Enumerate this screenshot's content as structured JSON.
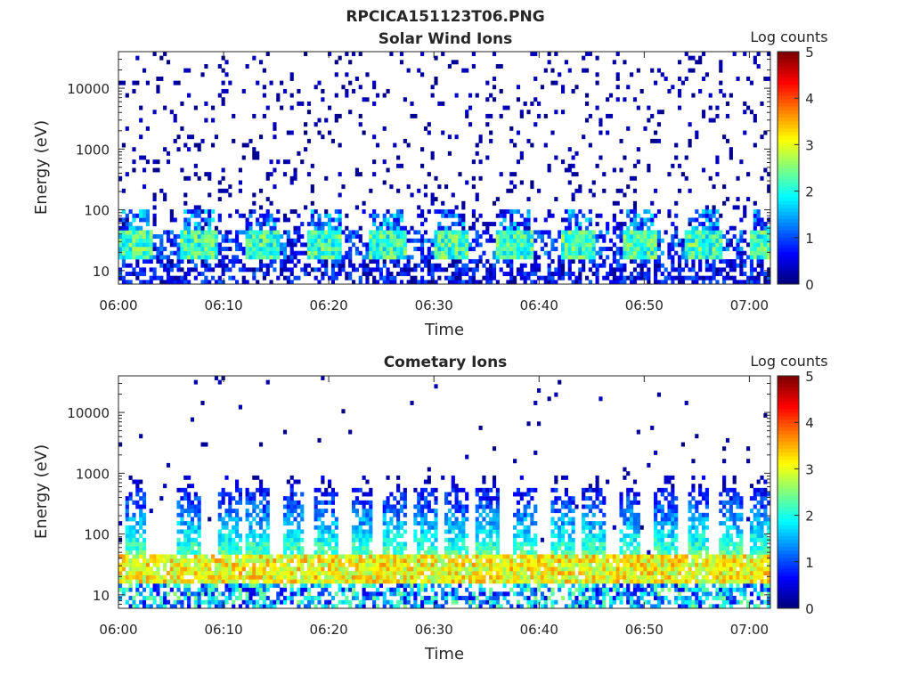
{
  "figure": {
    "title": "RPCICA151123T06.PNG"
  },
  "chart_data": [
    {
      "type": "heatmap",
      "title": "Solar Wind Ions",
      "xlabel": "Time",
      "ylabel": "Energy (eV)",
      "xlim": [
        "06:00",
        "07:02"
      ],
      "ylim": [
        6,
        40000
      ],
      "yscale": "log",
      "xticks": [
        "06:00",
        "06:10",
        "06:20",
        "06:30",
        "06:40",
        "06:50",
        "07:00"
      ],
      "yticks": [
        10,
        100,
        1000,
        10000
      ],
      "ytick_labels": [
        "10",
        "100",
        "1000",
        "10000"
      ],
      "colorbar": {
        "label": "Log counts",
        "min": 0,
        "max": 5,
        "ticks": [
          0,
          1,
          2,
          3,
          4,
          5
        ],
        "tick_labels": [
          "0",
          "1",
          "2",
          "3",
          "4",
          "5"
        ],
        "colormap": "jet"
      },
      "description_values": {
        "core_band_energy_eV": [
          15,
          45
        ],
        "core_band_log_counts": [
          1.5,
          2.8
        ],
        "background_log_counts": [
          0,
          0.5
        ]
      }
    },
    {
      "type": "heatmap",
      "title": "Cometary Ions",
      "xlabel": "Time",
      "ylabel": "Energy (eV)",
      "xlim": [
        "06:00",
        "07:02"
      ],
      "ylim": [
        6,
        40000
      ],
      "yscale": "log",
      "xticks": [
        "06:00",
        "06:10",
        "06:20",
        "06:30",
        "06:40",
        "06:50",
        "07:00"
      ],
      "yticks": [
        10,
        100,
        1000,
        10000
      ],
      "ytick_labels": [
        "10",
        "100",
        "1000",
        "10000"
      ],
      "colorbar": {
        "label": "Log counts",
        "min": 0,
        "max": 5,
        "ticks": [
          0,
          1,
          2,
          3,
          4,
          5
        ],
        "tick_labels": [
          "0",
          "1",
          "2",
          "3",
          "4",
          "5"
        ],
        "colormap": "jet"
      },
      "burst_minutes": [
        1.5,
        6.5,
        10.5,
        13,
        16.5,
        19.5,
        23,
        26,
        29,
        32,
        35,
        38.5,
        42,
        45,
        48.5,
        52,
        55,
        58,
        61
      ],
      "description_values": {
        "core_band_energy_eV": [
          15,
          45
        ],
        "core_band_log_counts": [
          2.5,
          3.7
        ],
        "burst_peak_energy_eV": 600
      }
    }
  ]
}
